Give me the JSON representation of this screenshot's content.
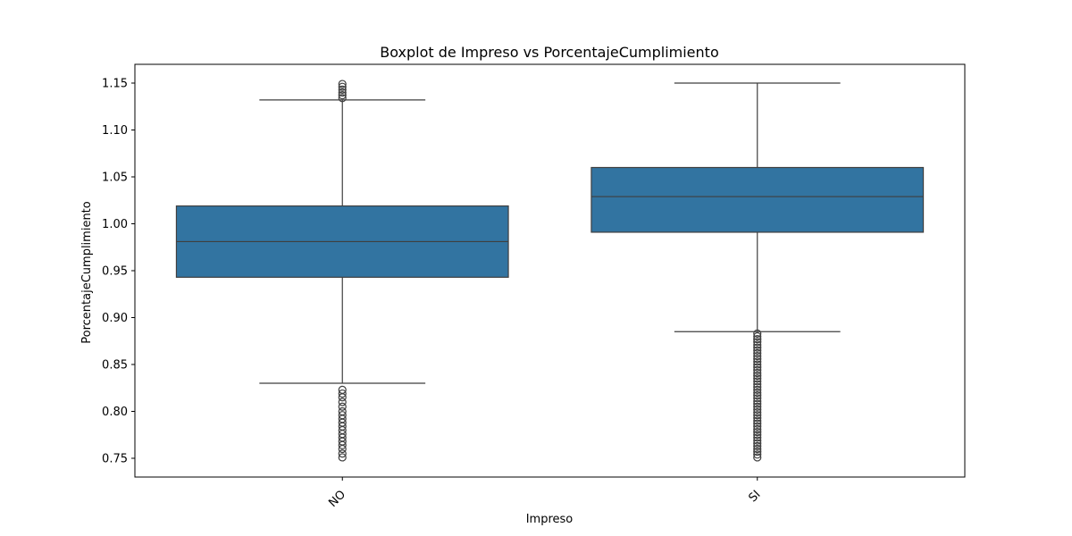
{
  "chart_data": {
    "type": "box",
    "title": "Boxplot de Impreso vs PorcentajeCumplimiento",
    "xlabel": "Impreso",
    "ylabel": "PorcentajeCumplimiento",
    "categories": [
      "NO",
      "SI"
    ],
    "ylim": [
      0.73,
      1.17
    ],
    "yticks": [
      0.75,
      0.8,
      0.85,
      0.9,
      0.95,
      1.0,
      1.05,
      1.1,
      1.15
    ],
    "ytick_labels": [
      "0.75",
      "0.80",
      "0.85",
      "0.90",
      "0.95",
      "1.00",
      "1.05",
      "1.10",
      "1.15"
    ],
    "grid": false,
    "box_color": "#3274a1",
    "line_color": "#3f3f3f",
    "boxes": [
      {
        "category": "NO",
        "whisker_low": 0.83,
        "q1": 0.943,
        "median": 0.981,
        "q3": 1.019,
        "whisker_high": 1.132,
        "outliers": [
          1.134,
          1.137,
          1.14,
          1.143,
          1.146,
          1.149,
          0.751,
          0.755,
          0.76,
          0.764,
          0.768,
          0.772,
          0.776,
          0.78,
          0.784,
          0.788,
          0.792,
          0.796,
          0.8,
          0.805,
          0.81,
          0.815,
          0.819,
          0.823
        ]
      },
      {
        "category": "SI",
        "whisker_low": 0.885,
        "q1": 0.991,
        "median": 1.029,
        "q3": 1.06,
        "whisker_high": 1.15,
        "outliers": [
          0.751,
          0.754,
          0.757,
          0.76,
          0.763,
          0.766,
          0.769,
          0.772,
          0.775,
          0.778,
          0.781,
          0.784,
          0.787,
          0.79,
          0.793,
          0.796,
          0.799,
          0.802,
          0.805,
          0.808,
          0.811,
          0.814,
          0.817,
          0.82,
          0.823,
          0.826,
          0.829,
          0.832,
          0.835,
          0.838,
          0.841,
          0.844,
          0.847,
          0.85,
          0.853,
          0.856,
          0.859,
          0.862,
          0.865,
          0.868,
          0.871,
          0.874,
          0.877,
          0.88,
          0.883
        ]
      }
    ]
  }
}
